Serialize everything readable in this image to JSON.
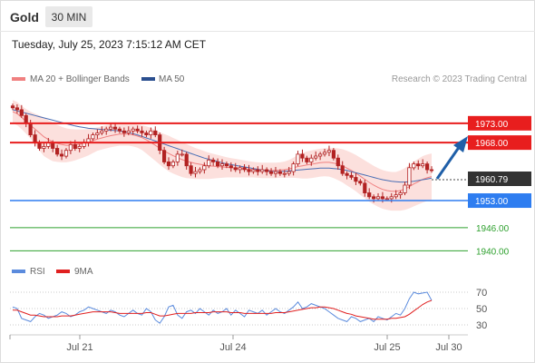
{
  "header": {
    "symbol": "Gold",
    "timeframe": "30 MIN",
    "timestamp": "Tuesday, July 25, 2023 7:15:12 AM CET"
  },
  "legend": {
    "ma20_label": "MA 20 + Bollinger Bands",
    "ma50_label": "MA 50",
    "research": "Research © 2023 Trading Central"
  },
  "rsi_legend": {
    "rsi_label": "RSI",
    "ma_label": "9MA"
  },
  "colors": {
    "candle": "#b22222",
    "band_fill": "#fbd5d2",
    "ma20": "#f08080",
    "ma50": "#4a6fb5",
    "resistance": "#e81e1e",
    "support": "#2e7df0",
    "target": "#2ea02e",
    "arrow": "#1f5fa8",
    "rsi": "#5b8bdd",
    "rsi_ma": "#e02020",
    "last_price_bg": "#333333"
  },
  "chart_data": {
    "type": "candlestick",
    "y_range": [
      1934,
      1980
    ],
    "x_tick_labels": [
      "Jul 21",
      "Jul 24",
      "Jul 25",
      "Jul 30"
    ],
    "last_price": "1960.79",
    "levels": [
      {
        "label": "1973.00",
        "value": 1973.0,
        "kind": "resistance"
      },
      {
        "label": "1968.00",
        "value": 1968.0,
        "kind": "resistance"
      },
      {
        "label": "1953.00",
        "value": 1953.0,
        "kind": "support"
      },
      {
        "label": "1946.00",
        "value": 1946.0,
        "kind": "target"
      },
      {
        "label": "1940.00",
        "value": 1940.0,
        "kind": "target"
      }
    ],
    "close": [
      1977,
      1976.5,
      1975,
      1973,
      1970,
      1968,
      1966.5,
      1967,
      1968,
      1966.5,
      1965,
      1964.5,
      1966,
      1967.5,
      1966.5,
      1967,
      1968,
      1969,
      1970,
      1970.5,
      1971,
      1971.5,
      1972,
      1971.5,
      1971,
      1970.5,
      1971,
      1971.5,
      1971,
      1970.5,
      1970,
      1971,
      1970,
      1966,
      1963,
      1962,
      1963,
      1965,
      1965,
      1962,
      1960,
      1960.5,
      1961,
      1962,
      1963.5,
      1963,
      1962,
      1962.5,
      1962,
      1961.5,
      1961,
      1961.5,
      1961,
      1960.5,
      1961,
      1960.5,
      1961,
      1960.5,
      1960,
      1960.5,
      1960,
      1960,
      1960.5,
      1962.5,
      1965,
      1964,
      1963,
      1964,
      1964.5,
      1965,
      1965.5,
      1966,
      1964,
      1962,
      1960,
      1959.5,
      1959,
      1958,
      1957.5,
      1955,
      1954,
      1953.5,
      1954,
      1953.5,
      1953.5,
      1954,
      1954.5,
      1955,
      1957,
      1961.5,
      1962.5,
      1962,
      1962.5,
      1961,
      1960.79
    ],
    "ma20": [
      1976,
      1975.5,
      1974.5,
      1973.5,
      1972.5,
      1971.5,
      1970.5,
      1969.5,
      1968.8,
      1968.2,
      1967.8,
      1967.5,
      1967.3,
      1967.3,
      1967.4,
      1967.6,
      1967.8,
      1968.1,
      1968.5,
      1968.9,
      1969.2,
      1969.5,
      1969.8,
      1970,
      1970.2,
      1970.2,
      1970.2,
      1970,
      1969.7,
      1969.3,
      1968.7,
      1968,
      1967.3,
      1966.5,
      1965.8,
      1965.2,
      1964.6,
      1964.1,
      1963.6,
      1963.2,
      1962.9,
      1962.6,
      1962.4,
      1962.2,
      1962,
      1961.9,
      1961.8,
      1961.7,
      1961.6,
      1961.5,
      1961.4,
      1961.3,
      1961.2,
      1961.1,
      1961,
      1960.9,
      1960.8,
      1960.8,
      1960.8,
      1960.8,
      1960.9,
      1961,
      1961.2,
      1961.5,
      1961.8,
      1962,
      1962.2,
      1962.4,
      1962.6,
      1962.8,
      1962.9,
      1962.9,
      1962.7,
      1962.4,
      1962,
      1961.4,
      1960.8,
      1960.1,
      1959.3,
      1958.5,
      1957.7,
      1957,
      1956.4,
      1955.9,
      1955.6,
      1955.4,
      1955.4,
      1955.6,
      1956,
      1956.6,
      1957.3,
      1957.9,
      1958.5,
      1958.9,
      1959.2
    ],
    "band_width": [
      3,
      3,
      3,
      3.2,
      3.5,
      4,
      4.5,
      5,
      5,
      5,
      4.8,
      4.6,
      4.4,
      4.2,
      4,
      3.8,
      3.6,
      3.4,
      3.2,
      3,
      3,
      3,
      3,
      3,
      3,
      3,
      3,
      3,
      3,
      3.2,
      3.5,
      3.8,
      4,
      4.2,
      4.4,
      4.6,
      4.6,
      4.6,
      4.5,
      4.4,
      4.2,
      4,
      3.8,
      3.6,
      3.4,
      3.2,
      3,
      2.8,
      2.6,
      2.5,
      2.4,
      2.3,
      2.2,
      2.1,
      2,
      2,
      2,
      2,
      2,
      2,
      2,
      2.1,
      2.3,
      2.6,
      3,
      3.3,
      3.5,
      3.6,
      3.6,
      3.6,
      3.6,
      3.7,
      3.9,
      4.1,
      4.3,
      4.5,
      4.6,
      4.7,
      4.8,
      4.9,
      5,
      5,
      5,
      5,
      5,
      5,
      5,
      5.2,
      5.4,
      5.6,
      5.8,
      5.9,
      6,
      6,
      6
    ],
    "ma50": [
      1976.5,
      1976.2,
      1975.9,
      1975.6,
      1975.3,
      1975,
      1974.7,
      1974.4,
      1974.1,
      1973.8,
      1973.5,
      1973.2,
      1972.9,
      1972.6,
      1972.3,
      1972.1,
      1971.9,
      1971.7,
      1971.6,
      1971.5,
      1971.4,
      1971.3,
      1971.2,
      1971.1,
      1971,
      1970.8,
      1970.6,
      1970.3,
      1970,
      1969.6,
      1969.2,
      1968.8,
      1968.4,
      1968,
      1967.6,
      1967.2,
      1966.8,
      1966.4,
      1966,
      1965.6,
      1965.2,
      1964.8,
      1964.4,
      1964,
      1963.7,
      1963.4,
      1963.1,
      1962.8,
      1962.5,
      1962.3,
      1962.1,
      1961.9,
      1961.7,
      1961.5,
      1961.3,
      1961.1,
      1960.9,
      1960.7,
      1960.6,
      1960.5,
      1960.5,
      1960.6,
      1960.7,
      1960.8,
      1960.9,
      1961,
      1961.1,
      1961.2,
      1961.3,
      1961.4,
      1961.4,
      1961.4,
      1961.3,
      1961.2,
      1961,
      1960.8,
      1960.5,
      1960.2,
      1959.9,
      1959.6,
      1959.3,
      1959,
      1958.7,
      1958.4,
      1958.2,
      1958,
      1957.9,
      1957.8,
      1957.8,
      1957.9,
      1958,
      1958.2,
      1958.4,
      1958.6,
      1958.8
    ],
    "rsi": {
      "ticks": [
        70,
        50,
        30
      ],
      "rsi_values": [
        52,
        50,
        38,
        36,
        34,
        40,
        44,
        42,
        38,
        40,
        42,
        46,
        44,
        40,
        42,
        46,
        48,
        52,
        50,
        48,
        46,
        44,
        48,
        46,
        42,
        40,
        44,
        48,
        44,
        42,
        50,
        46,
        36,
        32,
        40,
        52,
        54,
        42,
        38,
        46,
        48,
        44,
        50,
        46,
        42,
        48,
        44,
        46,
        50,
        42,
        48,
        44,
        40,
        48,
        46,
        44,
        48,
        42,
        46,
        50,
        46,
        44,
        48,
        52,
        58,
        50,
        52,
        56,
        54,
        52,
        50,
        46,
        42,
        38,
        36,
        34,
        40,
        38,
        34,
        36,
        38,
        34,
        40,
        38,
        36,
        40,
        44,
        42,
        50,
        62,
        70,
        68,
        69,
        70,
        60
      ],
      "ma_values": [
        48,
        48,
        46,
        44,
        42,
        42,
        41,
        40,
        40,
        40,
        40,
        41,
        41,
        41,
        42,
        43,
        44,
        45,
        46,
        46,
        46,
        46,
        46,
        45,
        44,
        44,
        44,
        44,
        44,
        44,
        45,
        45,
        43,
        41,
        41,
        42,
        43,
        44,
        44,
        44,
        44,
        45,
        45,
        45,
        45,
        46,
        46,
        46,
        46,
        45,
        45,
        45,
        44,
        44,
        44,
        44,
        44,
        44,
        44,
        45,
        45,
        45,
        46,
        47,
        48,
        49,
        50,
        51,
        51,
        52,
        52,
        51,
        50,
        48,
        46,
        44,
        43,
        41,
        40,
        39,
        38,
        37,
        37,
        37,
        37,
        38,
        38,
        39,
        40,
        43,
        47,
        51,
        55,
        58,
        60
      ]
    }
  }
}
